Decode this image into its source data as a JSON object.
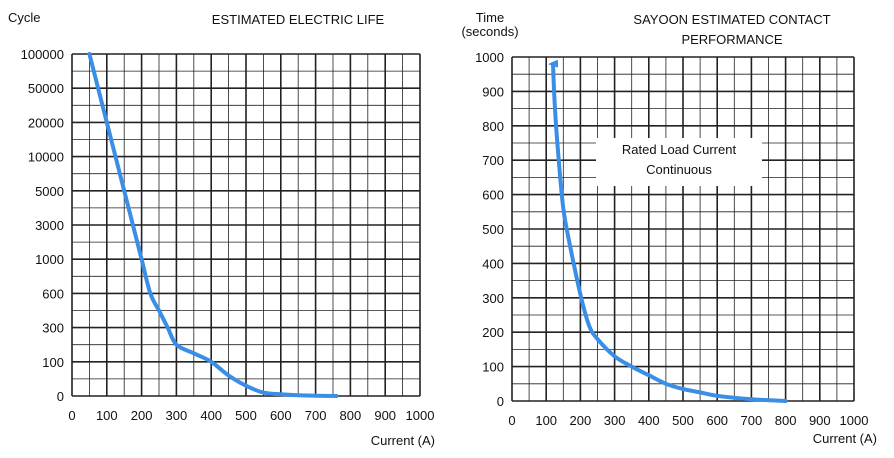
{
  "chart_data": [
    {
      "type": "line",
      "title": "ESTIMATED ELECTRIC LIFE",
      "ylabel": "Cycle",
      "xlabel": "Current (A)",
      "x_ticks": [
        "0",
        "100",
        "200",
        "300",
        "400",
        "500",
        "600",
        "700",
        "800",
        "900",
        "1000"
      ],
      "y_ticks": [
        "0",
        "100",
        "300",
        "600",
        "1000",
        "3000",
        "5000",
        "10000",
        "20000",
        "50000",
        "100000"
      ],
      "xlim": [
        0,
        1000
      ],
      "y_scale": "categorical (non-linear, tick labels evenly spaced)",
      "grid": true,
      "series_color": "#3a8ee6",
      "series": [
        {
          "x": [
            50,
            75,
            100,
            125,
            150,
            175,
            200,
            225,
            250,
            275,
            300,
            350,
            400,
            450,
            500,
            550,
            600,
            650,
            700,
            760
          ],
          "y": [
            100000,
            50000,
            20000,
            10000,
            5000,
            3000,
            1000,
            600,
            450,
            300,
            200,
            150,
            100,
            60,
            30,
            10,
            5,
            2,
            1,
            0
          ]
        }
      ]
    },
    {
      "type": "line",
      "title": "SAYOON ESTIMATED CONTACT PERFORMANCE",
      "ylabel": "Time (seconds)",
      "ylabel_lines": [
        "Time",
        "(seconds)"
      ],
      "title_lines": [
        "SAYOON ESTIMATED CONTACT",
        "PERFORMANCE"
      ],
      "xlabel": "Current (A)",
      "x_ticks": [
        "0",
        "100",
        "200",
        "300",
        "400",
        "500",
        "600",
        "700",
        "800",
        "900",
        "1000"
      ],
      "y_ticks": [
        "0",
        "100",
        "200",
        "300",
        "400",
        "500",
        "600",
        "700",
        "800",
        "900",
        "1000"
      ],
      "xlim": [
        0,
        1000
      ],
      "ylim": [
        0,
        1000
      ],
      "grid": true,
      "annotation": [
        "Rated Load Current",
        "Continuous"
      ],
      "series_color": "#3a8ee6",
      "series": [
        {
          "x": [
            120,
            125,
            135,
            150,
            170,
            200,
            225,
            250,
            300,
            350,
            400,
            450,
            500,
            550,
            600,
            700,
            800
          ],
          "y": [
            980,
            860,
            720,
            560,
            450,
            310,
            220,
            180,
            130,
            100,
            75,
            50,
            35,
            25,
            15,
            5,
            0
          ]
        }
      ]
    }
  ]
}
